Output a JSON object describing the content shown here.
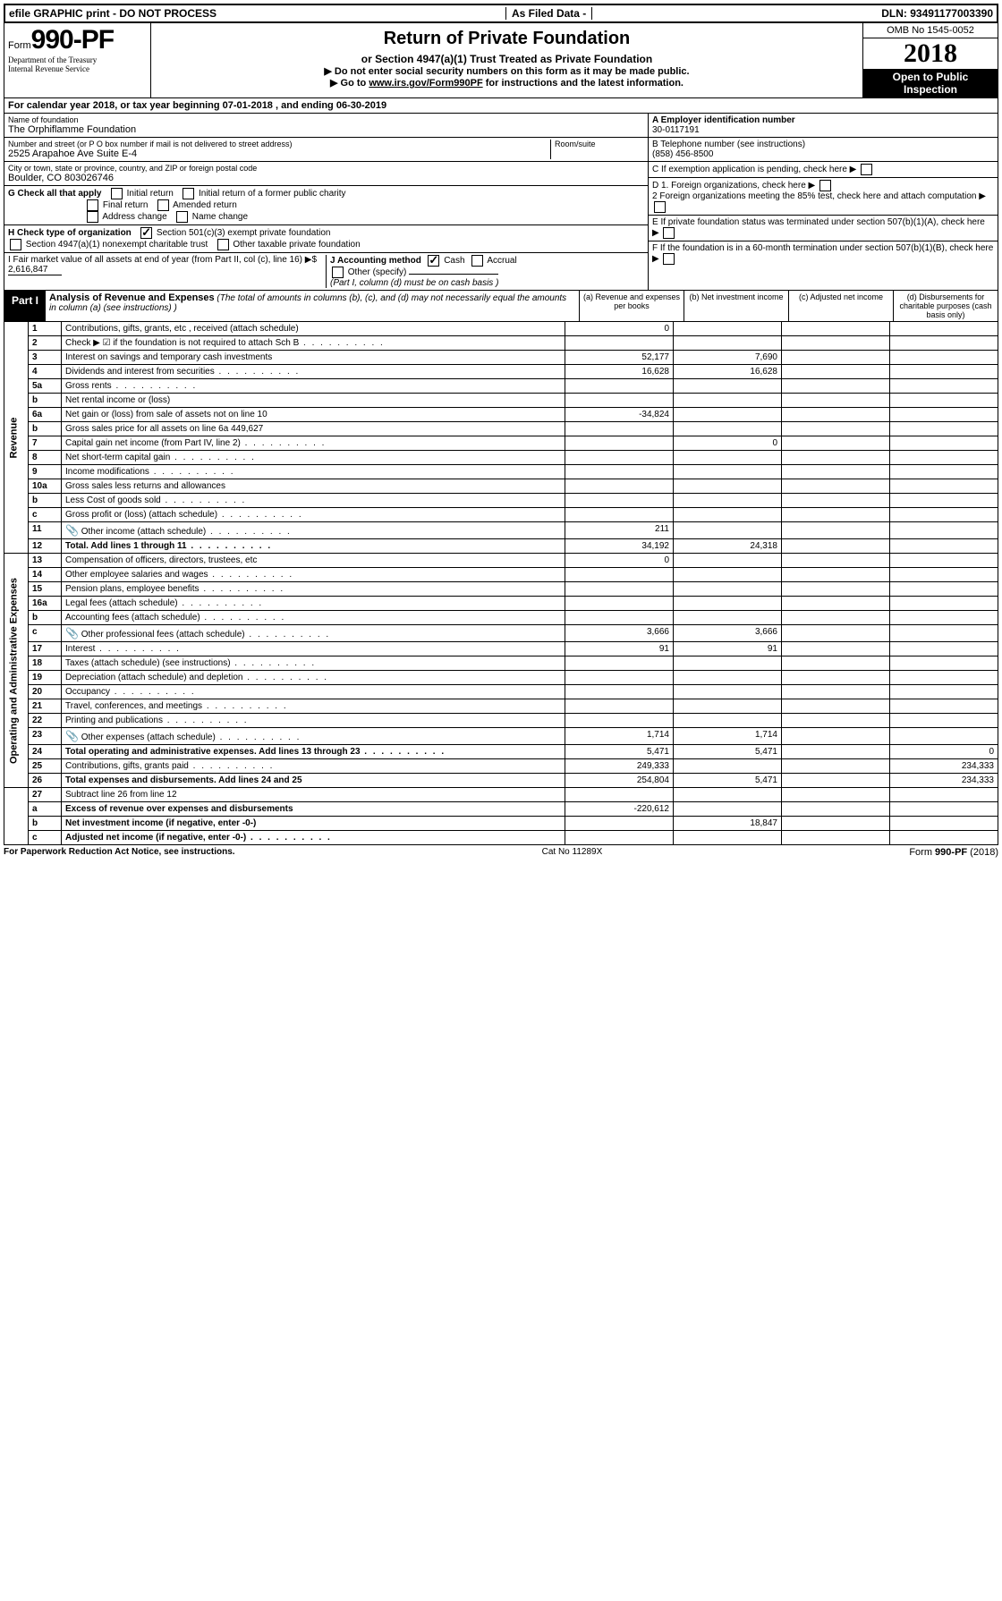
{
  "topbar": {
    "left": "efile GRAPHIC print - DO NOT PROCESS",
    "mid": "As Filed Data -",
    "right": "DLN: 93491177003390"
  },
  "header": {
    "form_prefix": "Form",
    "form_number": "990-PF",
    "dept1": "Department of the Treasury",
    "dept2": "Internal Revenue Service",
    "title": "Return of Private Foundation",
    "subtitle": "or Section 4947(a)(1) Trust Treated as Private Foundation",
    "instr1": "▶ Do not enter social security numbers on this form as it may be made public.",
    "instr2_pre": "▶ Go to ",
    "instr2_link": "www.irs.gov/Form990PF",
    "instr2_post": " for instructions and the latest information.",
    "omb": "OMB No 1545-0052",
    "year": "2018",
    "open": "Open to Public Inspection"
  },
  "calyear": {
    "text_pre": "For calendar year 2018, or tax year beginning ",
    "begin": "07-01-2018",
    "mid": " , and ending ",
    "end": "06-30-2019"
  },
  "foundation": {
    "name_label": "Name of foundation",
    "name": "The Orphiflamme Foundation",
    "addr_label": "Number and street (or P O  box number if mail is not delivered to street address)",
    "addr": "2525 Arapahoe Ave Suite E-4",
    "room_label": "Room/suite",
    "city_label": "City or town, state or province, country, and ZIP or foreign postal code",
    "city": "Boulder, CO  803026746"
  },
  "right_info": {
    "A_label": "A Employer identification number",
    "A_val": "30-0117191",
    "B_label": "B Telephone number (see instructions)",
    "B_val": "(858) 456-8500",
    "C_label": "C If exemption application is pending, check here",
    "D1": "D 1. Foreign organizations, check here",
    "D2": "2 Foreign organizations meeting the 85% test, check here and attach computation",
    "E": "E  If private foundation status was terminated under section 507(b)(1)(A), check here",
    "F": "F  If the foundation is in a 60-month termination under section 507(b)(1)(B), check here"
  },
  "G": {
    "label": "G Check all that apply",
    "opts": [
      "Initial return",
      "Initial return of a former public charity",
      "Final return",
      "Amended return",
      "Address change",
      "Name change"
    ]
  },
  "H": {
    "label": "H Check type of organization",
    "opt1": "Section 501(c)(3) exempt private foundation",
    "opt2": "Section 4947(a)(1) nonexempt charitable trust",
    "opt3": "Other taxable private foundation"
  },
  "I": {
    "label": "I Fair market value of all assets at end of year (from Part II, col  (c), line 16) ▶$ ",
    "val": "2,616,847"
  },
  "J": {
    "label": "J Accounting method",
    "cash": "Cash",
    "accrual": "Accrual",
    "other": "Other (specify)",
    "note": "(Part I, column (d) must be on cash basis )"
  },
  "part1": {
    "tab": "Part I",
    "title": "Analysis of Revenue and Expenses",
    "note": " (The total of amounts in columns (b), (c), and (d) may not necessarily equal the amounts in column (a) (see instructions) )",
    "col_a": "(a) Revenue and expenses per books",
    "col_b": "(b) Net investment income",
    "col_c": "(c) Adjusted net income",
    "col_d": "(d) Disbursements for charitable purposes (cash basis only)"
  },
  "side": {
    "revenue": "Revenue",
    "expenses": "Operating and Administrative Expenses"
  },
  "rows": [
    {
      "n": "1",
      "d": "Contributions, gifts, grants, etc , received (attach schedule)",
      "a": "0",
      "b": "",
      "c": "",
      "e": ""
    },
    {
      "n": "2",
      "d": "Check ▶ ☑ if the foundation is not required to attach Sch  B",
      "a": "",
      "b": "",
      "c": "",
      "e": "",
      "dots": true
    },
    {
      "n": "3",
      "d": "Interest on savings and temporary cash investments",
      "a": "52,177",
      "b": "7,690",
      "c": "",
      "e": ""
    },
    {
      "n": "4",
      "d": "Dividends and interest from securities",
      "a": "16,628",
      "b": "16,628",
      "c": "",
      "e": "",
      "dots": true
    },
    {
      "n": "5a",
      "d": "Gross rents",
      "a": "",
      "b": "",
      "c": "",
      "e": "",
      "dots": true
    },
    {
      "n": "b",
      "d": "Net rental income or (loss)",
      "a": "",
      "b": "",
      "c": "",
      "e": ""
    },
    {
      "n": "6a",
      "d": "Net gain or (loss) from sale of assets not on line 10",
      "a": "-34,824",
      "b": "",
      "c": "",
      "e": ""
    },
    {
      "n": "b",
      "d": "Gross sales price for all assets on line 6a           449,627",
      "a": "",
      "b": "",
      "c": "",
      "e": ""
    },
    {
      "n": "7",
      "d": "Capital gain net income (from Part IV, line 2)",
      "a": "",
      "b": "0",
      "c": "",
      "e": "",
      "dots": true
    },
    {
      "n": "8",
      "d": "Net short-term capital gain",
      "a": "",
      "b": "",
      "c": "",
      "e": "",
      "dots": true
    },
    {
      "n": "9",
      "d": "Income modifications",
      "a": "",
      "b": "",
      "c": "",
      "e": "",
      "dots": true
    },
    {
      "n": "10a",
      "d": "Gross sales less returns and allowances",
      "a": "",
      "b": "",
      "c": "",
      "e": ""
    },
    {
      "n": "b",
      "d": "Less  Cost of goods sold",
      "a": "",
      "b": "",
      "c": "",
      "e": "",
      "dots": true
    },
    {
      "n": "c",
      "d": "Gross profit or (loss) (attach schedule)",
      "a": "",
      "b": "",
      "c": "",
      "e": "",
      "dots": true
    },
    {
      "n": "11",
      "d": "Other income (attach schedule)",
      "a": "211",
      "b": "",
      "c": "",
      "e": "",
      "icon": true,
      "dots": true
    },
    {
      "n": "12",
      "d": "Total. Add lines 1 through 11",
      "a": "34,192",
      "b": "24,318",
      "c": "",
      "e": "",
      "bold": true,
      "dots": true
    }
  ],
  "exp_rows": [
    {
      "n": "13",
      "d": "Compensation of officers, directors, trustees, etc",
      "a": "0",
      "b": "",
      "c": "",
      "e": ""
    },
    {
      "n": "14",
      "d": "Other employee salaries and wages",
      "a": "",
      "b": "",
      "c": "",
      "e": "",
      "dots": true
    },
    {
      "n": "15",
      "d": "Pension plans, employee benefits",
      "a": "",
      "b": "",
      "c": "",
      "e": "",
      "dots": true
    },
    {
      "n": "16a",
      "d": "Legal fees (attach schedule)",
      "a": "",
      "b": "",
      "c": "",
      "e": "",
      "dots": true
    },
    {
      "n": "b",
      "d": "Accounting fees (attach schedule)",
      "a": "",
      "b": "",
      "c": "",
      "e": "",
      "dots": true
    },
    {
      "n": "c",
      "d": "Other professional fees (attach schedule)",
      "a": "3,666",
      "b": "3,666",
      "c": "",
      "e": "",
      "icon": true,
      "dots": true
    },
    {
      "n": "17",
      "d": "Interest",
      "a": "91",
      "b": "91",
      "c": "",
      "e": "",
      "dots": true
    },
    {
      "n": "18",
      "d": "Taxes (attach schedule) (see instructions)",
      "a": "",
      "b": "",
      "c": "",
      "e": "",
      "dots": true
    },
    {
      "n": "19",
      "d": "Depreciation (attach schedule) and depletion",
      "a": "",
      "b": "",
      "c": "",
      "e": "",
      "dots": true
    },
    {
      "n": "20",
      "d": "Occupancy",
      "a": "",
      "b": "",
      "c": "",
      "e": "",
      "dots": true
    },
    {
      "n": "21",
      "d": "Travel, conferences, and meetings",
      "a": "",
      "b": "",
      "c": "",
      "e": "",
      "dots": true
    },
    {
      "n": "22",
      "d": "Printing and publications",
      "a": "",
      "b": "",
      "c": "",
      "e": "",
      "dots": true
    },
    {
      "n": "23",
      "d": "Other expenses (attach schedule)",
      "a": "1,714",
      "b": "1,714",
      "c": "",
      "e": "",
      "icon": true,
      "dots": true
    },
    {
      "n": "24",
      "d": "Total operating and administrative expenses. Add lines 13 through 23",
      "a": "5,471",
      "b": "5,471",
      "c": "",
      "e": "0",
      "bold": true,
      "dots": true
    },
    {
      "n": "25",
      "d": "Contributions, gifts, grants paid",
      "a": "249,333",
      "b": "",
      "c": "",
      "e": "234,333",
      "dots": true
    },
    {
      "n": "26",
      "d": "Total expenses and disbursements. Add lines 24 and 25",
      "a": "254,804",
      "b": "5,471",
      "c": "",
      "e": "234,333",
      "bold": true
    }
  ],
  "bottom_rows": [
    {
      "n": "27",
      "d": "Subtract line 26 from line 12",
      "a": "",
      "b": "",
      "c": "",
      "e": ""
    },
    {
      "n": "a",
      "d": "Excess of revenue over expenses and disbursements",
      "a": "-220,612",
      "b": "",
      "c": "",
      "e": "",
      "bold": true
    },
    {
      "n": "b",
      "d": "Net investment income (if negative, enter -0-)",
      "a": "",
      "b": "18,847",
      "c": "",
      "e": "",
      "bold": true
    },
    {
      "n": "c",
      "d": "Adjusted net income (if negative, enter -0-)",
      "a": "",
      "b": "",
      "c": "",
      "e": "",
      "bold": true,
      "dots": true
    }
  ],
  "footer": {
    "left": "For Paperwork Reduction Act Notice, see instructions.",
    "mid": "Cat  No  11289X",
    "right_pre": "Form ",
    "right_form": "990-PF",
    "right_post": " (2018)"
  }
}
